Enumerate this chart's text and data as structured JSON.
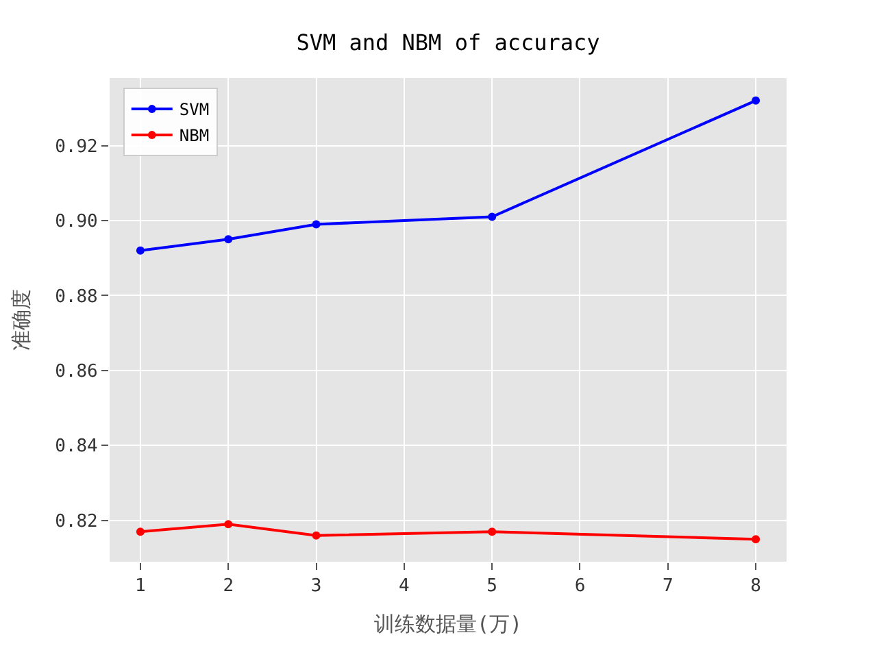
{
  "chart_data": {
    "type": "line",
    "title": "SVM and NBM of accuracy",
    "xlabel": "训练数据量(万)",
    "ylabel": "准确度",
    "x": [
      1,
      2,
      3,
      5,
      8
    ],
    "series": [
      {
        "name": "SVM",
        "color": "#0000ff",
        "values": [
          0.892,
          0.895,
          0.899,
          0.901,
          0.932
        ]
      },
      {
        "name": "NBM",
        "color": "#ff0000",
        "values": [
          0.817,
          0.819,
          0.816,
          0.817,
          0.815
        ]
      }
    ],
    "xlim": [
      0.65,
      8.35
    ],
    "xticks": [
      1,
      2,
      3,
      4,
      5,
      6,
      7,
      8
    ],
    "ylim": [
      0.809,
      0.938
    ],
    "yticks": [
      {
        "value": 0.82,
        "label": "0.82"
      },
      {
        "value": 0.84,
        "label": "0.84"
      },
      {
        "value": 0.86,
        "label": "0.86"
      },
      {
        "value": 0.88,
        "label": "0.88"
      },
      {
        "value": 0.9,
        "label": "0.90"
      },
      {
        "value": 0.92,
        "label": "0.92"
      }
    ],
    "grid": true,
    "legend": "top left",
    "marker": "circle",
    "line_style": "solid"
  }
}
